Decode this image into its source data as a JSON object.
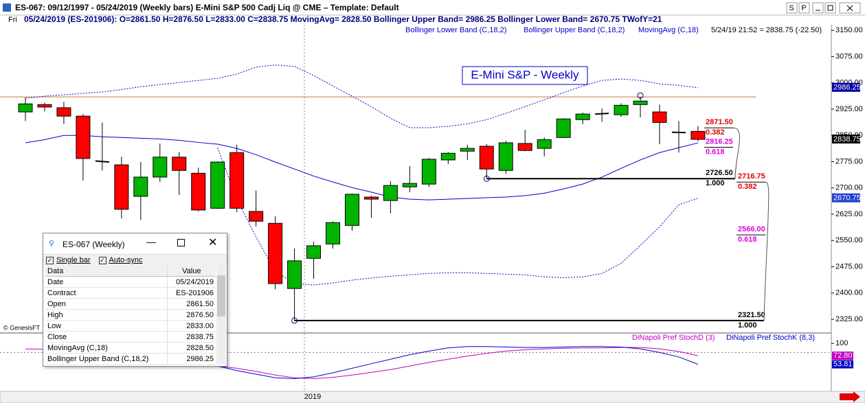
{
  "window": {
    "title": "ES-067:  09/12/1997 - 05/24/2019  (Weekly bars)   E-Mini S&P 500 Cadj Liq @ CME  –  Template: Default",
    "buttons": [
      "S",
      "P"
    ]
  },
  "status": {
    "day": "Fri",
    "text": "05/24/2019 (ES-201906): O=2861.50  H=2876.50  L=2833.00  C=2838.75  MovingAvg= 2828.50  Bollinger Upper Band= 2986.25  Bollinger Lower Band= 2670.75  TWofY=21",
    "last_trade": "5/24/19 21:52 = 2838.75 (-22.50)"
  },
  "chart_data": [
    {
      "type": "candlestick",
      "title": "E-Mini S&P - Weekly",
      "credit": "© GenesisFT",
      "year_marker": "2019",
      "up_color": "#00b400",
      "down_color": "#ff0000",
      "open": [
        2917,
        2938,
        2929,
        2905,
        2777,
        2766,
        2676,
        2731,
        2788,
        2742,
        2642,
        2801,
        2633,
        2599,
        2413,
        2499,
        2540,
        2593,
        2674,
        2664,
        2703,
        2711,
        2780,
        2805,
        2819,
        2750,
        2827,
        2813,
        2844,
        2895,
        2911,
        2909,
        2938,
        2917,
        2859,
        2861.5
      ],
      "high": [
        2958,
        2944,
        2946,
        2911,
        2887,
        2789,
        2774,
        2827,
        2803,
        2758,
        2776,
        2823,
        2693,
        2619,
        2527,
        2547,
        2605,
        2684,
        2678,
        2719,
        2762,
        2786,
        2803,
        2823,
        2825,
        2835,
        2866,
        2844,
        2899,
        2915,
        2927,
        2942,
        2960,
        2938,
        2891,
        2876.5
      ],
      "low": [
        2891,
        2919,
        2882,
        2721,
        2750,
        2613,
        2609,
        2717,
        2680,
        2633,
        2640,
        2631,
        2590,
        2411,
        2321.5,
        2441,
        2527,
        2578,
        2615,
        2627,
        2688,
        2703,
        2768,
        2780,
        2726.5,
        2740,
        2805,
        2790,
        2844,
        2882,
        2889,
        2903,
        2901,
        2825,
        2801,
        2833
      ],
      "close": [
        2940,
        2931,
        2905,
        2784,
        2774,
        2639,
        2731,
        2788,
        2750,
        2637,
        2774,
        2642,
        2605,
        2427,
        2492,
        2535,
        2601,
        2682,
        2668,
        2707,
        2713,
        2782,
        2799,
        2813,
        2754,
        2829,
        2807,
        2838,
        2897,
        2911,
        2913,
        2936,
        2948,
        2887,
        2858,
        2838.75
      ],
      "series": [
        {
          "name": "Bollinger Lower Band (C,18,2)",
          "color": "#0000c8",
          "dashed": true,
          "values": [
            null,
            null,
            null,
            null,
            null,
            null,
            null,
            null,
            null,
            null,
            2815,
            2668,
            2560,
            2462,
            2427,
            2423,
            2429,
            2437,
            2443,
            2448,
            2452,
            2456,
            2458,
            2458,
            2456,
            2454,
            2452,
            2446,
            2444,
            2446,
            2456,
            2485,
            2536,
            2589,
            2652,
            2670.75
          ]
        },
        {
          "name": "Bollinger Upper Band (C,18,2)",
          "color": "#0000c8",
          "dashed": true,
          "values": [
            2956,
            2962,
            2966,
            2970,
            2974,
            2981,
            2989,
            2995,
            3001,
            3007,
            3013,
            3025,
            3045,
            3051,
            3047,
            3021,
            2991,
            2962,
            2932,
            2899,
            2872,
            2872,
            2876,
            2883,
            2895,
            2913,
            2932,
            2952,
            2972,
            2991,
            3007,
            3011,
            3007,
            2997,
            2993,
            2986.25
          ]
        },
        {
          "name": "MovingAvg (C,18)",
          "color": "#0000c8",
          "dashed": false,
          "values": [
            2829,
            2838,
            2850,
            2850,
            2846,
            2844,
            2842,
            2840,
            2836,
            2830,
            2825,
            2813,
            2795,
            2774,
            2754,
            2734,
            2717,
            2701,
            2688,
            2674,
            2668,
            2666,
            2668,
            2670,
            2672,
            2674,
            2678,
            2685,
            2697,
            2711,
            2731,
            2756,
            2780,
            2801,
            2815,
            2828.5
          ]
        }
      ],
      "hlines": [
        {
          "value": 2960,
          "color": "#c8783c"
        }
      ],
      "fib_sets": [
        {
          "levels": [
            {
              "value": 2871.5,
              "label": "2871.50",
              "ratio": "0.382",
              "color": "#e00000"
            },
            {
              "value": 2816.25,
              "label": "2816.25",
              "ratio": "0.618",
              "color": "#e000e0"
            },
            {
              "value": 2726.5,
              "label": "2726.50",
              "ratio": "1.000",
              "color": "#000000"
            }
          ]
        },
        {
          "levels": [
            {
              "value": 2716.75,
              "label": "2716.75",
              "ratio": "0.382",
              "color": "#e00000"
            },
            {
              "value": 2566,
              "label": "2566.00",
              "ratio": "0.618",
              "color": "#e000e0"
            },
            {
              "value": 2321.5,
              "label": "2321.50",
              "ratio": "1.000",
              "color": "#000000"
            }
          ]
        }
      ],
      "ylim": [
        2286,
        3166
      ],
      "yticks": [
        {
          "value": 3150,
          "label": "3150.00"
        },
        {
          "value": 3075,
          "label": "3075.00"
        },
        {
          "value": 3000,
          "label": "3000.00"
        },
        {
          "value": 2925,
          "label": "2925.00"
        },
        {
          "value": 2850,
          "label": "2850.00"
        },
        {
          "value": 2775,
          "label": "2775.00"
        },
        {
          "value": 2700,
          "label": "2700.00"
        },
        {
          "value": 2625,
          "label": "2625.00"
        },
        {
          "value": 2550,
          "label": "2550.00"
        },
        {
          "value": 2475,
          "label": "2475.00"
        },
        {
          "value": 2400,
          "label": "2400.00"
        },
        {
          "value": 2325,
          "label": "2325.00"
        }
      ]
    },
    {
      "type": "line",
      "ylim": [
        -6,
        120
      ],
      "yticks": [
        100
      ],
      "reference_lines": [
        80
      ],
      "series": [
        {
          "name": "DiNapoli Pref StochD (3)",
          "color": "#c000c0",
          "last_value_label": "72.80",
          "values": [
            88,
            87,
            85,
            82,
            78,
            74,
            70,
            65,
            60,
            55,
            50,
            45,
            38,
            30,
            24,
            22,
            25,
            30,
            36,
            42,
            50,
            58,
            65,
            72,
            78,
            83,
            86,
            88,
            89,
            90,
            90,
            91,
            91,
            88,
            82,
            72.8
          ]
        },
        {
          "name": "DiNapoli Pref StochK (8,3)",
          "color": "#0000c8",
          "last_value_label": "53.81",
          "values": [
            null,
            null,
            null,
            null,
            null,
            null,
            null,
            null,
            null,
            60,
            50,
            40,
            32,
            24,
            22,
            26,
            35,
            45,
            55,
            65,
            75,
            83,
            90,
            93,
            93,
            92,
            91,
            91,
            92,
            93,
            93,
            92,
            88,
            80,
            70,
            53.81
          ]
        }
      ]
    }
  ],
  "info_window": {
    "title": "ES-067 (Weekly)",
    "options": [
      "Single bar",
      "Auto-sync"
    ],
    "header": [
      "Data",
      "Value"
    ],
    "rows": [
      [
        "Date",
        "05/24/2019"
      ],
      [
        "Contract",
        "ES-201906"
      ],
      [
        "Open",
        "2861.50"
      ],
      [
        "High",
        "2876.50"
      ],
      [
        "Low",
        "2833.00"
      ],
      [
        "Close",
        "2838.75"
      ],
      [
        "MovingAvg (C,18)",
        "2828.50"
      ],
      [
        "Bollinger Upper Band (C,18,2)",
        "2986.25"
      ]
    ]
  }
}
